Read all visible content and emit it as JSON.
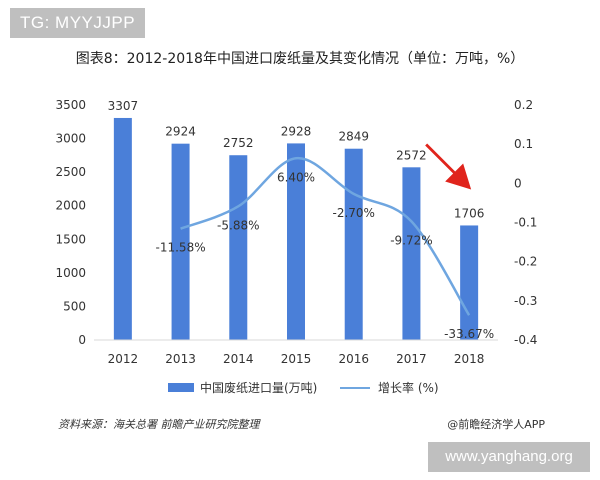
{
  "badge": "TG: MYYJJPP",
  "chart_data": {
    "type": "bar",
    "title": "图表8：2012-2018年中国进口废纸量及其变化情况（单位：万吨，%）",
    "categories": [
      "2012",
      "2013",
      "2014",
      "2015",
      "2016",
      "2017",
      "2018"
    ],
    "series": [
      {
        "name": "中国废纸进口量(万吨)",
        "type": "bar",
        "axis": "left",
        "values": [
          3307,
          2924,
          2752,
          2928,
          2849,
          2572,
          1706
        ],
        "labels": [
          "3307",
          "2924",
          "2752",
          "2928",
          "2849",
          "2572",
          "1706"
        ]
      },
      {
        "name": "增长率 (%)",
        "type": "line",
        "axis": "right",
        "values": [
          null,
          -0.1158,
          -0.0588,
          0.064,
          -0.027,
          -0.0972,
          -0.3367
        ],
        "labels": [
          "",
          "-11.58%",
          "-5.88%",
          "6.40%",
          "-2.70%",
          "-9.72%",
          "-33.67%"
        ]
      }
    ],
    "y_left": {
      "range": [
        0,
        3500
      ],
      "ticks": [
        "0",
        "500",
        "1000",
        "1500",
        "2000",
        "2500",
        "3000",
        "3500"
      ]
    },
    "y_right": {
      "range": [
        -0.4,
        0.2
      ],
      "ticks": [
        "0.2",
        "0.1",
        "0",
        "-0.1",
        "-0.2",
        "-0.3",
        "-0.4"
      ]
    },
    "grid": false,
    "legend": "bottom",
    "annotation": "red arrow pointing at the 2018 bar",
    "colors": {
      "bar": "#4a7fd8",
      "line": "#6fa6e0",
      "arrow": "#e0241c"
    }
  },
  "footer": {
    "source": "资料来源：海关总署 前瞻产业研究院整理",
    "credit": "@前瞻经济学人APP",
    "url": "www.yanghang.org"
  }
}
